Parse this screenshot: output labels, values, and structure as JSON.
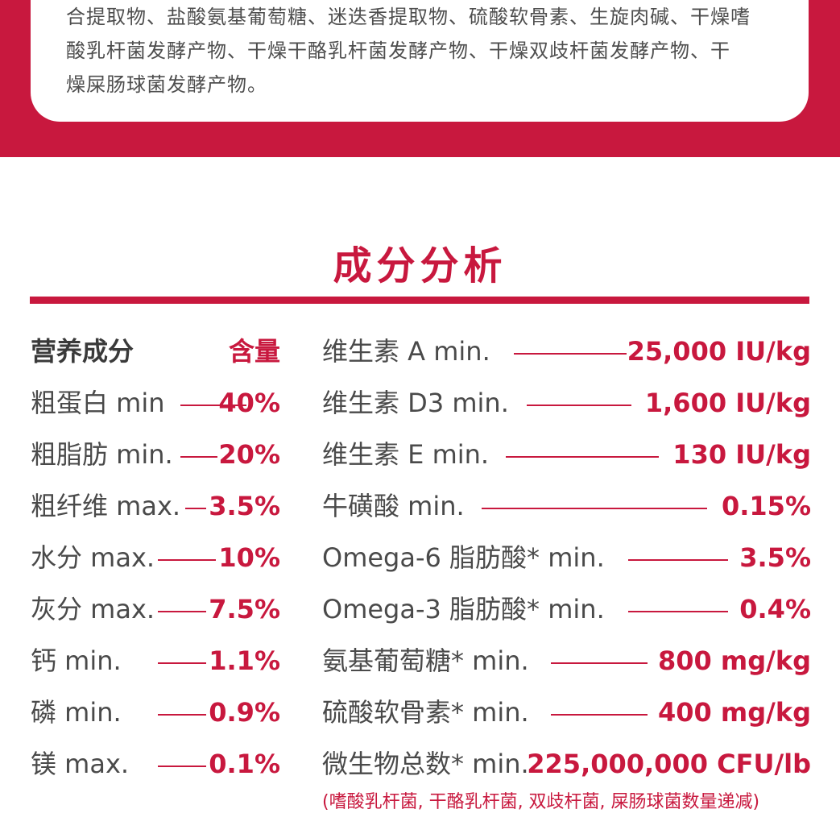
{
  "ingredients_card": {
    "lines": [
      "合提取物、盐酸氨基葡萄糖、迷迭香提取物、硫酸软骨素、生旋肉碱、干燥嗜",
      "酸乳杆菌发酵产物、干燥干酪乳杆菌发酵产物、干燥双歧杆菌发酵产物、干",
      "燥屎肠球菌发酵产物。"
    ]
  },
  "section_title": "成分分析",
  "left_table": {
    "header": {
      "label": "营养成分",
      "value": "含量"
    },
    "rows": [
      {
        "label": "粗蛋白 min",
        "value": "40%"
      },
      {
        "label": "粗脂肪 min.",
        "value": "20%"
      },
      {
        "label": "粗纤维 max.",
        "value": "3.5%"
      },
      {
        "label": "水分 max.",
        "value": "10%"
      },
      {
        "label": "灰分 max.",
        "value": "7.5%"
      },
      {
        "label": "钙 min.",
        "value": "1.1%"
      },
      {
        "label": "磷 min.",
        "value": "0.9%"
      },
      {
        "label": "镁 max.",
        "value": "0.1%"
      }
    ]
  },
  "right_table": {
    "rows": [
      {
        "label": "维生素 A min.",
        "value": "25,000 IU/kg"
      },
      {
        "label": "维生素 D3 min.",
        "value": "1,600 IU/kg"
      },
      {
        "label": "维生素 E min.",
        "value": "130 IU/kg"
      },
      {
        "label": "牛磺酸 min.",
        "value": "0.15%"
      },
      {
        "label": "Omega-6 脂肪酸* min.",
        "value": "3.5%"
      },
      {
        "label": "Omega-3 脂肪酸* min.",
        "value": "0.4%"
      },
      {
        "label": "氨基葡萄糖* min.",
        "value": "800 mg/kg"
      },
      {
        "label": "硫酸软骨素* min.",
        "value": "400 mg/kg"
      },
      {
        "label": "微生物总数* min.",
        "value": "225,000,000 CFU/lb"
      }
    ],
    "note": "(嗜酸乳杆菌, 干酪乳杆菌, 双歧杆菌, 屎肠球菌数量递减)"
  },
  "colors": {
    "accent": "#c8183e",
    "text": "#4a4a4a",
    "background": "#ffffff"
  }
}
